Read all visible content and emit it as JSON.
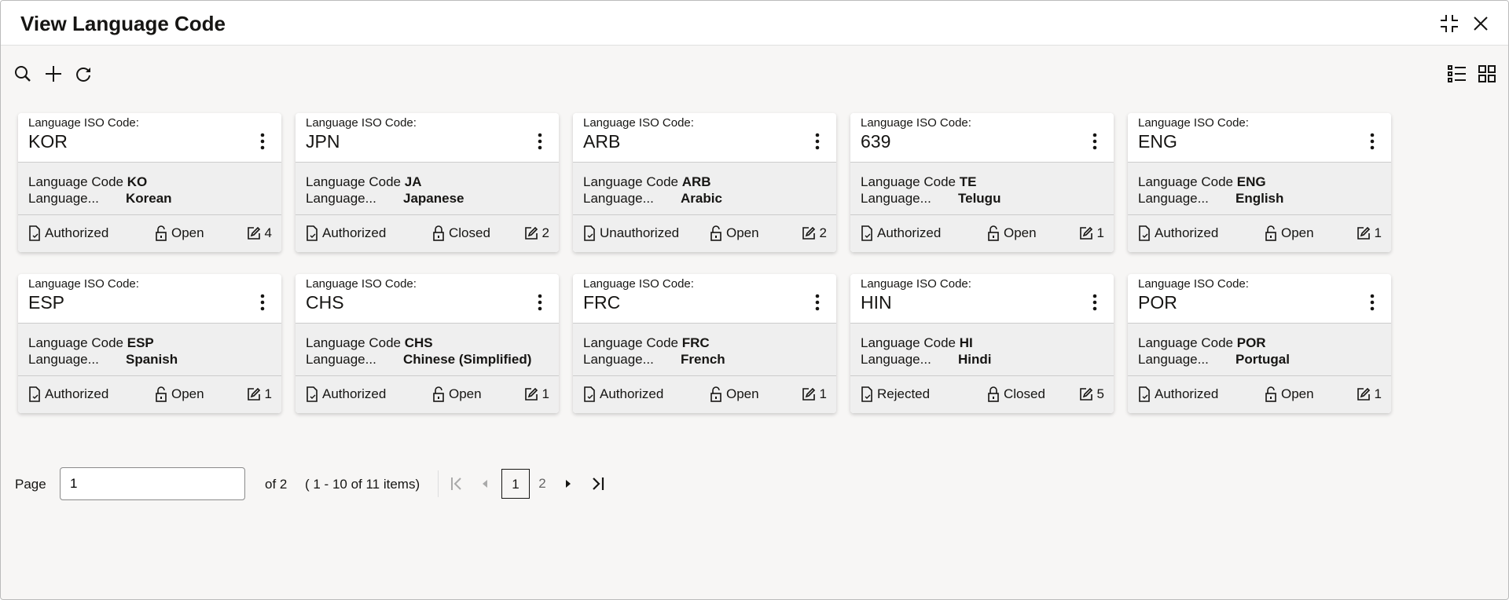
{
  "header": {
    "title": "View Language Code"
  },
  "cards": [
    {
      "label": "Language ISO Code:",
      "code": "KOR",
      "f1": "Language Code",
      "v1": "KO",
      "f2": "Language...",
      "v2": "Korean",
      "status": "Authorized",
      "lock": "Open",
      "count": "4"
    },
    {
      "label": "Language ISO Code:",
      "code": "JPN",
      "f1": "Language Code",
      "v1": "JA",
      "f2": "Language...",
      "v2": "Japanese",
      "status": "Authorized",
      "lock": "Closed",
      "count": "2"
    },
    {
      "label": "Language ISO Code:",
      "code": "ARB",
      "f1": "Language Code",
      "v1": "ARB",
      "f2": "Language...",
      "v2": "Arabic",
      "status": "Unauthorized",
      "lock": "Open",
      "count": "2"
    },
    {
      "label": "Language ISO Code:",
      "code": "639",
      "f1": "Language Code",
      "v1": "TE",
      "f2": "Language...",
      "v2": "Telugu",
      "status": "Authorized",
      "lock": "Open",
      "count": "1"
    },
    {
      "label": "Language ISO Code:",
      "code": "ENG",
      "f1": "Language Code",
      "v1": "ENG",
      "f2": "Language...",
      "v2": "English",
      "status": "Authorized",
      "lock": "Open",
      "count": "1"
    },
    {
      "label": "Language ISO Code:",
      "code": "ESP",
      "f1": "Language Code",
      "v1": "ESP",
      "f2": "Language...",
      "v2": "Spanish",
      "status": "Authorized",
      "lock": "Open",
      "count": "1"
    },
    {
      "label": "Language ISO Code:",
      "code": "CHS",
      "f1": "Language Code",
      "v1": "CHS",
      "f2": "Language...",
      "v2": "Chinese (Simplified)",
      "status": "Authorized",
      "lock": "Open",
      "count": "1"
    },
    {
      "label": "Language ISO Code:",
      "code": "FRC",
      "f1": "Language Code",
      "v1": "FRC",
      "f2": "Language...",
      "v2": "French",
      "status": "Authorized",
      "lock": "Open",
      "count": "1"
    },
    {
      "label": "Language ISO Code:",
      "code": "HIN",
      "f1": "Language Code",
      "v1": "HI",
      "f2": "Language...",
      "v2": "Hindi",
      "status": "Rejected",
      "lock": "Closed",
      "count": "5"
    },
    {
      "label": "Language ISO Code:",
      "code": "POR",
      "f1": "Language Code",
      "v1": "POR",
      "f2": "Language...",
      "v2": "Portugal",
      "status": "Authorized",
      "lock": "Open",
      "count": "1"
    }
  ],
  "pagination": {
    "page_label": "Page",
    "page_value": "1",
    "of_text": "of 2",
    "range_text": "( 1 - 10 of 11 items)",
    "pages": [
      "1",
      "2"
    ],
    "current": "1"
  }
}
